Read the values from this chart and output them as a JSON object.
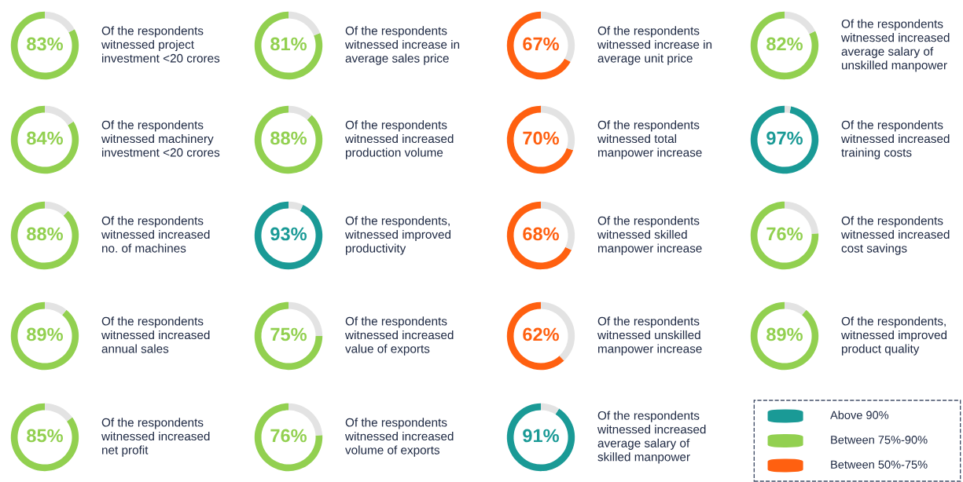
{
  "chart_data": [
    {
      "type": "donut",
      "title": "Of the respondents\nwitnessed project\ninvestment <20 crores",
      "categories": [
        null,
        null
      ],
      "values": [
        83,
        17
      ],
      "colors": [
        "#92d050",
        "#e3e3e3"
      ],
      "value_labels": [
        "83%",
        null
      ]
    },
    {
      "type": "donut",
      "title": "Of the respondents\nwitnessed increase in\naverage sales price",
      "categories": [
        null,
        null
      ],
      "values": [
        81,
        19
      ],
      "colors": [
        "#92d050",
        "#e3e3e3"
      ],
      "value_labels": [
        "81%",
        null
      ]
    },
    {
      "type": "donut",
      "title": "Of the respondents\nwitnessed increase in\naverage unit price",
      "categories": [
        null,
        null
      ],
      "values": [
        67,
        33
      ],
      "colors": [
        "#ff6010",
        "#e3e3e3"
      ],
      "value_labels": [
        "67%",
        null
      ]
    },
    {
      "type": "donut",
      "title": "Of the respondents\nwitnessed increased\naverage salary of\nunskilled manpower",
      "categories": [
        null,
        null
      ],
      "values": [
        82,
        18
      ],
      "colors": [
        "#92d050",
        "#e3e3e3"
      ],
      "value_labels": [
        "82%",
        null
      ]
    },
    {
      "type": "donut",
      "title": "Of the respondents\nwitnessed machinery\ninvestment <20 crores",
      "categories": [
        null,
        null
      ],
      "values": [
        84,
        16
      ],
      "colors": [
        "#92d050",
        "#e3e3e3"
      ],
      "value_labels": [
        "84%",
        null
      ]
    },
    {
      "type": "donut",
      "title": "Of the respondents\nwitnessed increased\nproduction volume",
      "categories": [
        null,
        null
      ],
      "values": [
        88,
        12
      ],
      "colors": [
        "#92d050",
        "#e3e3e3"
      ],
      "value_labels": [
        "88%",
        null
      ]
    },
    {
      "type": "donut",
      "title": "Of the respondents\nwitnessed total\nmanpower increase",
      "categories": [
        null,
        null
      ],
      "values": [
        70,
        30
      ],
      "colors": [
        "#ff6010",
        "#e3e3e3"
      ],
      "value_labels": [
        "70%",
        null
      ]
    },
    {
      "type": "donut",
      "title": "Of the respondents\nwitnessed increased\ntraining costs",
      "categories": [
        null,
        null
      ],
      "values": [
        97,
        3
      ],
      "colors": [
        "#1a9a96",
        "#e3e3e3"
      ],
      "value_labels": [
        "97%",
        null
      ]
    },
    {
      "type": "donut",
      "title": "Of the respondents\nwitnessed increased\nno. of machines",
      "categories": [
        null,
        null
      ],
      "values": [
        88,
        12
      ],
      "colors": [
        "#92d050",
        "#e3e3e3"
      ],
      "value_labels": [
        "88%",
        null
      ]
    },
    {
      "type": "donut",
      "title": "Of the respondents,\nwitnessed improved\nproductivity",
      "categories": [
        null,
        null
      ],
      "values": [
        93,
        7
      ],
      "colors": [
        "#1a9a96",
        "#e3e3e3"
      ],
      "value_labels": [
        "93%",
        null
      ]
    },
    {
      "type": "donut",
      "title": "Of the respondents\nwitnessed skilled\nmanpower increase",
      "categories": [
        null,
        null
      ],
      "values": [
        68,
        32
      ],
      "colors": [
        "#ff6010",
        "#e3e3e3"
      ],
      "value_labels": [
        "68%",
        null
      ]
    },
    {
      "type": "donut",
      "title": "Of the respondents\nwitnessed increased\ncost savings",
      "categories": [
        null,
        null
      ],
      "values": [
        76,
        24
      ],
      "colors": [
        "#92d050",
        "#e3e3e3"
      ],
      "value_labels": [
        "76%",
        null
      ]
    },
    {
      "type": "donut",
      "title": "Of the respondents\nwitnessed increased\nannual sales",
      "categories": [
        null,
        null
      ],
      "values": [
        89,
        11
      ],
      "colors": [
        "#92d050",
        "#e3e3e3"
      ],
      "value_labels": [
        "89%",
        null
      ]
    },
    {
      "type": "donut",
      "title": "Of the respondents\nwitnessed increased\nvalue of exports",
      "categories": [
        null,
        null
      ],
      "values": [
        75,
        25
      ],
      "colors": [
        "#92d050",
        "#e3e3e3"
      ],
      "value_labels": [
        "75%",
        null
      ]
    },
    {
      "type": "donut",
      "title": "Of the respondents\nwitnessed unskilled\nmanpower increase",
      "categories": [
        null,
        null
      ],
      "values": [
        62,
        38
      ],
      "colors": [
        "#ff6010",
        "#e3e3e3"
      ],
      "value_labels": [
        "62%",
        null
      ]
    },
    {
      "type": "donut",
      "title": "Of the respondents,\nwitnessed improved\nproduct quality",
      "categories": [
        null,
        null
      ],
      "values": [
        89,
        11
      ],
      "colors": [
        "#92d050",
        "#e3e3e3"
      ],
      "value_labels": [
        "89%",
        null
      ]
    },
    {
      "type": "donut",
      "title": "Of the respondents\nwitnessed increased\nnet profit",
      "categories": [
        null,
        null
      ],
      "values": [
        85,
        15
      ],
      "colors": [
        "#92d050",
        "#e3e3e3"
      ],
      "value_labels": [
        "85%",
        null
      ]
    },
    {
      "type": "donut",
      "title": "Of the respondents\nwitnessed increased\nvolume of exports",
      "categories": [
        null,
        null
      ],
      "values": [
        76,
        24
      ],
      "colors": [
        "#92d050",
        "#e3e3e3"
      ],
      "value_labels": [
        "76%",
        null
      ]
    },
    {
      "type": "donut",
      "title": "Of the respondents\nwitnessed increased\naverage salary of\nskilled manpower",
      "categories": [
        null,
        null
      ],
      "values": [
        91,
        9
      ],
      "colors": [
        "#1a9a96",
        "#e3e3e3"
      ],
      "value_labels": [
        "91%",
        null
      ]
    },
    {
      "type": "other",
      "categories": [
        "Above 90%",
        "Between 75%-90%",
        "Between 50%-75%"
      ],
      "colors": [
        "#1a9a96",
        "#92d050",
        "#ff6010"
      ]
    }
  ]
}
